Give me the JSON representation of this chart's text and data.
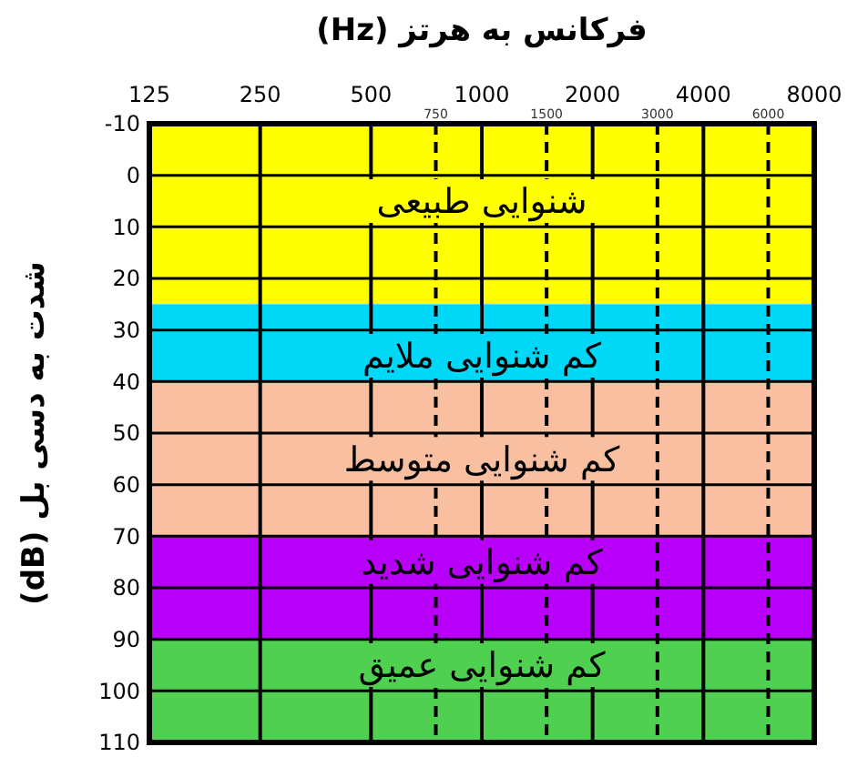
{
  "chart_data": {
    "type": "line",
    "xlabel": "فرکانس به هرتز (Hz)",
    "ylabel": "شدت به دسی بل (dB)",
    "log": "x",
    "xlim": [
      125,
      8000
    ],
    "xticks": [
      125,
      250,
      500,
      1000,
      2000,
      4000,
      8000
    ],
    "ylim": [
      110,
      -10
    ],
    "yticks": [
      -10,
      0,
      10,
      20,
      30,
      40,
      50,
      60,
      70,
      80,
      90,
      100,
      110
    ],
    "grid": true,
    "bands": [
      {
        "axis": "y",
        "from": -10,
        "to": 25,
        "label": "شنوایی طبیعی",
        "color": "#ffff00"
      },
      {
        "axis": "y",
        "from": 25,
        "to": 40,
        "label": "کم شنوایی ملایم",
        "color": "#00d8f8"
      },
      {
        "axis": "y",
        "from": 40,
        "to": 70,
        "label": "کم شنوایی متوسط",
        "color": "#f8c0a0"
      },
      {
        "axis": "y",
        "from": 70,
        "to": 90,
        "label": "کم شنوایی شدید",
        "color": "#b800f8"
      },
      {
        "axis": "y",
        "from": 90,
        "to": 110,
        "label": "کم شنوایی عمیق",
        "color": "#50d050"
      }
    ],
    "ref_lines": [
      {
        "axis": "x",
        "value": 750,
        "label": "750",
        "line_style": "dashed"
      },
      {
        "axis": "x",
        "value": 1500,
        "label": "1500",
        "line_style": "dashed"
      },
      {
        "axis": "x",
        "value": 3000,
        "label": "3000",
        "line_style": "dashed"
      },
      {
        "axis": "x",
        "value": 6000,
        "label": "6000",
        "line_style": "dashed"
      }
    ]
  }
}
